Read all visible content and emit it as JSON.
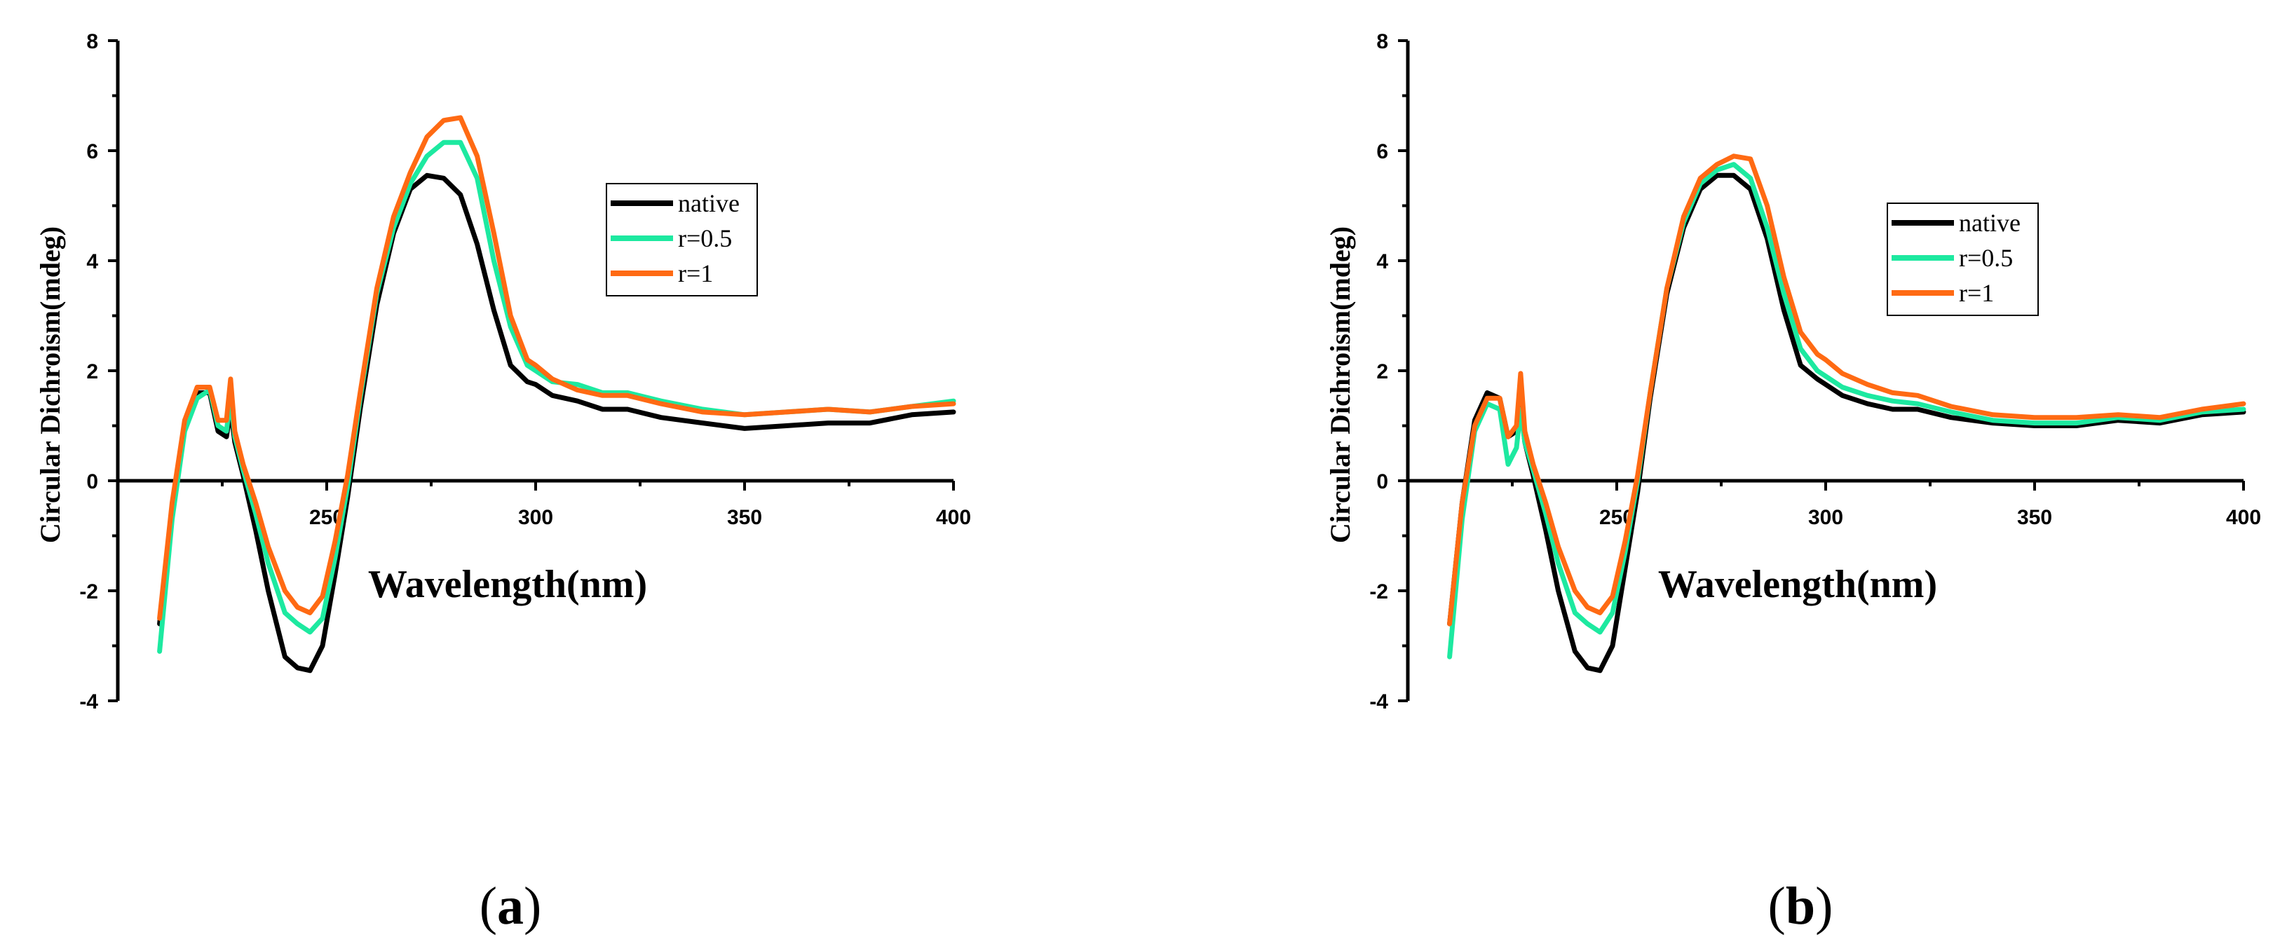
{
  "chart_data": [
    {
      "type": "line",
      "panel": "a",
      "panel_label": "a",
      "xlabel": "Wavelength(nm)",
      "ylabel": "Circular Dichroism(mdeg)",
      "xlim": [
        200,
        400
      ],
      "ylim": [
        -4,
        8
      ],
      "xticks": [
        250,
        300,
        350,
        400
      ],
      "yticks": [
        -4,
        -2,
        0,
        2,
        4,
        6,
        8
      ],
      "legend_position": "upper-middle-right",
      "series": [
        {
          "name": "native",
          "color": "#000000",
          "x": [
            210,
            213,
            216,
            219,
            222,
            224,
            226,
            227,
            228,
            230,
            233,
            236,
            240,
            243,
            246,
            249,
            252,
            255,
            258,
            262,
            266,
            270,
            274,
            278,
            282,
            286,
            290,
            294,
            298,
            300,
            304,
            310,
            316,
            322,
            330,
            340,
            350,
            360,
            370,
            380,
            390,
            400
          ],
          "y": [
            -2.6,
            -0.5,
            1.0,
            1.6,
            1.6,
            0.9,
            0.8,
            1.3,
            0.7,
            0.1,
            -0.9,
            -2.0,
            -3.2,
            -3.4,
            -3.45,
            -3.0,
            -1.7,
            -0.3,
            1.3,
            3.2,
            4.5,
            5.3,
            5.55,
            5.5,
            5.2,
            4.3,
            3.1,
            2.1,
            1.8,
            1.75,
            1.55,
            1.45,
            1.3,
            1.3,
            1.15,
            1.05,
            0.95,
            1.0,
            1.05,
            1.05,
            1.2,
            1.25
          ]
        },
        {
          "name": "r=0.5",
          "color": "#1de9a0",
          "x": [
            210,
            213,
            216,
            219,
            222,
            224,
            226,
            227,
            228,
            230,
            233,
            236,
            240,
            243,
            246,
            249,
            252,
            255,
            258,
            262,
            266,
            270,
            274,
            278,
            282,
            286,
            290,
            294,
            298,
            300,
            304,
            310,
            316,
            322,
            330,
            340,
            350,
            360,
            370,
            380,
            390,
            400
          ],
          "y": [
            -3.1,
            -0.7,
            0.9,
            1.5,
            1.65,
            1.0,
            0.9,
            1.5,
            0.8,
            0.2,
            -0.6,
            -1.5,
            -2.4,
            -2.6,
            -2.75,
            -2.5,
            -1.4,
            -0.1,
            1.5,
            3.4,
            4.6,
            5.4,
            5.9,
            6.15,
            6.15,
            5.5,
            4.0,
            2.8,
            2.1,
            2.0,
            1.8,
            1.75,
            1.6,
            1.6,
            1.45,
            1.3,
            1.2,
            1.25,
            1.3,
            1.25,
            1.35,
            1.45
          ]
        },
        {
          "name": "r=1",
          "color": "#ff6a13",
          "x": [
            210,
            213,
            216,
            219,
            222,
            224,
            226,
            227,
            228,
            230,
            233,
            236,
            240,
            243,
            246,
            249,
            252,
            255,
            258,
            262,
            266,
            270,
            274,
            278,
            282,
            286,
            290,
            294,
            298,
            300,
            304,
            310,
            316,
            322,
            330,
            340,
            350,
            360,
            370,
            380,
            390,
            400
          ],
          "y": [
            -2.5,
            -0.4,
            1.1,
            1.7,
            1.7,
            1.1,
            1.1,
            1.85,
            0.9,
            0.3,
            -0.4,
            -1.2,
            -2.0,
            -2.3,
            -2.4,
            -2.1,
            -1.1,
            0.1,
            1.6,
            3.5,
            4.8,
            5.6,
            6.25,
            6.55,
            6.6,
            5.9,
            4.5,
            3.0,
            2.2,
            2.1,
            1.85,
            1.65,
            1.55,
            1.55,
            1.4,
            1.25,
            1.2,
            1.25,
            1.3,
            1.25,
            1.35,
            1.4
          ]
        }
      ]
    },
    {
      "type": "line",
      "panel": "b",
      "panel_label": "b",
      "xlabel": "Wavelength(nm)",
      "ylabel": "Circular Dichroism(mdeg)",
      "xlim": [
        200,
        400
      ],
      "ylim": [
        -4,
        8
      ],
      "xticks": [
        250,
        300,
        350,
        400
      ],
      "yticks": [
        -4,
        -2,
        0,
        2,
        4,
        6,
        8
      ],
      "legend_position": "upper-right",
      "series": [
        {
          "name": "native",
          "color": "#000000",
          "x": [
            210,
            213,
            216,
            219,
            222,
            224,
            226,
            227,
            228,
            230,
            233,
            236,
            240,
            243,
            246,
            249,
            252,
            255,
            258,
            262,
            266,
            270,
            274,
            278,
            282,
            286,
            290,
            294,
            298,
            300,
            304,
            310,
            316,
            322,
            330,
            340,
            350,
            360,
            370,
            380,
            390,
            400
          ],
          "y": [
            -2.6,
            -0.4,
            1.1,
            1.6,
            1.5,
            0.8,
            0.9,
            1.4,
            0.7,
            0.1,
            -0.9,
            -2.0,
            -3.1,
            -3.4,
            -3.45,
            -3.0,
            -1.6,
            -0.2,
            1.5,
            3.4,
            4.6,
            5.3,
            5.55,
            5.55,
            5.3,
            4.4,
            3.1,
            2.1,
            1.85,
            1.75,
            1.55,
            1.4,
            1.3,
            1.3,
            1.15,
            1.05,
            1.0,
            1.0,
            1.1,
            1.05,
            1.2,
            1.25
          ]
        },
        {
          "name": "r=0.5",
          "color": "#1de9a0",
          "x": [
            210,
            213,
            216,
            219,
            222,
            224,
            226,
            227,
            228,
            230,
            233,
            236,
            240,
            243,
            246,
            249,
            252,
            255,
            258,
            262,
            266,
            270,
            274,
            278,
            282,
            286,
            290,
            294,
            298,
            300,
            304,
            310,
            316,
            322,
            330,
            340,
            350,
            360,
            370,
            380,
            390,
            400
          ],
          "y": [
            -3.2,
            -0.7,
            0.9,
            1.4,
            1.3,
            0.3,
            0.6,
            1.3,
            0.7,
            0.2,
            -0.6,
            -1.5,
            -2.4,
            -2.6,
            -2.75,
            -2.4,
            -1.3,
            0.0,
            1.6,
            3.5,
            4.7,
            5.4,
            5.65,
            5.75,
            5.5,
            4.6,
            3.4,
            2.4,
            2.0,
            1.9,
            1.7,
            1.55,
            1.45,
            1.4,
            1.25,
            1.1,
            1.05,
            1.05,
            1.15,
            1.1,
            1.25,
            1.3
          ]
        },
        {
          "name": "r=1",
          "color": "#ff6a13",
          "x": [
            210,
            213,
            216,
            219,
            222,
            224,
            226,
            227,
            228,
            230,
            233,
            236,
            240,
            243,
            246,
            249,
            252,
            255,
            258,
            262,
            266,
            270,
            274,
            278,
            282,
            286,
            290,
            294,
            298,
            300,
            304,
            310,
            316,
            322,
            330,
            340,
            350,
            360,
            370,
            380,
            390,
            400
          ],
          "y": [
            -2.6,
            -0.4,
            1.0,
            1.5,
            1.5,
            0.8,
            1.0,
            1.95,
            0.9,
            0.3,
            -0.4,
            -1.2,
            -2.0,
            -2.3,
            -2.4,
            -2.1,
            -1.1,
            0.1,
            1.6,
            3.5,
            4.8,
            5.5,
            5.75,
            5.9,
            5.85,
            5.0,
            3.7,
            2.7,
            2.3,
            2.2,
            1.95,
            1.75,
            1.6,
            1.55,
            1.35,
            1.2,
            1.15,
            1.15,
            1.2,
            1.15,
            1.3,
            1.4
          ]
        }
      ]
    }
  ]
}
